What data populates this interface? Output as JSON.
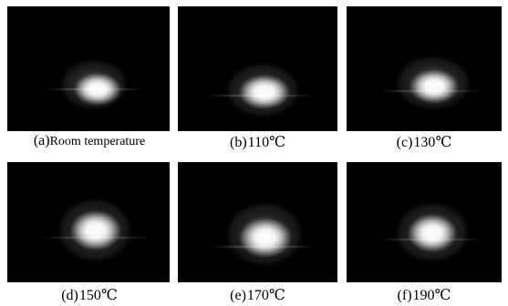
{
  "panels": [
    {
      "id": "a",
      "label": "(a)",
      "caption": "Room temperature"
    },
    {
      "id": "b",
      "label": "(b)",
      "caption": "110℃"
    },
    {
      "id": "c",
      "label": "(c)",
      "caption": "130℃"
    },
    {
      "id": "d",
      "label": "(d)",
      "caption": "150℃"
    },
    {
      "id": "e",
      "label": "(e)",
      "caption": "170℃"
    },
    {
      "id": "f",
      "label": "(f)",
      "caption": "190℃"
    }
  ],
  "colors": {
    "background": "#ffffff",
    "panel_background": "#000000",
    "spot": "#ffffff"
  }
}
